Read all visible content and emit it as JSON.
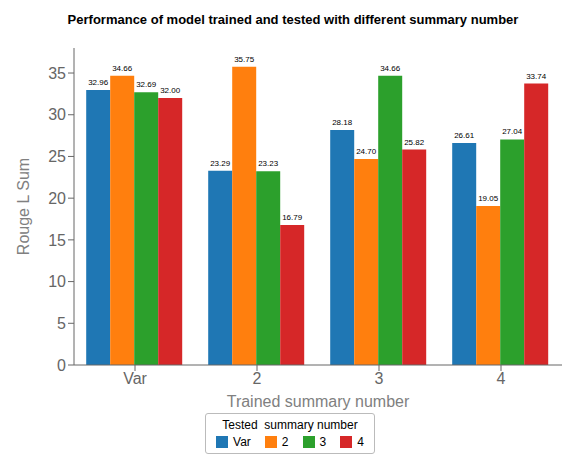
{
  "chart_data": {
    "type": "bar",
    "title": "Performance of model trained and tested with different summary number",
    "xlabel": "Trained summary number",
    "ylabel": "Rouge L Sum",
    "categories": [
      "Var",
      "2",
      "3",
      "4"
    ],
    "series": [
      {
        "name": "Var",
        "color": "#1f77b4",
        "values": [
          32.96,
          23.29,
          28.18,
          26.61
        ],
        "value_labels": [
          "32.96",
          "23.29",
          "28.18",
          "26.61"
        ]
      },
      {
        "name": "2",
        "color": "#ff7f0e",
        "values": [
          34.66,
          35.75,
          24.7,
          19.05
        ],
        "value_labels": [
          "34.66",
          "35.75",
          "24.70",
          "19.05"
        ]
      },
      {
        "name": "3",
        "color": "#2ca02c",
        "values": [
          32.69,
          23.23,
          34.66,
          27.04
        ],
        "value_labels": [
          "32.69",
          "23.23",
          "34.66",
          "27.04"
        ]
      },
      {
        "name": "4",
        "color": "#d62728",
        "values": [
          32.0,
          16.79,
          25.82,
          33.74
        ],
        "value_labels": [
          "32.00",
          "16.79",
          "25.82",
          "33.74"
        ]
      }
    ],
    "legend_title": "Tested  summary number",
    "legend": "bottom",
    "ylim": [
      0,
      38
    ],
    "yticks": [
      0,
      5,
      10,
      15,
      20,
      25,
      30,
      35
    ],
    "grid": false,
    "data_labels": true
  }
}
